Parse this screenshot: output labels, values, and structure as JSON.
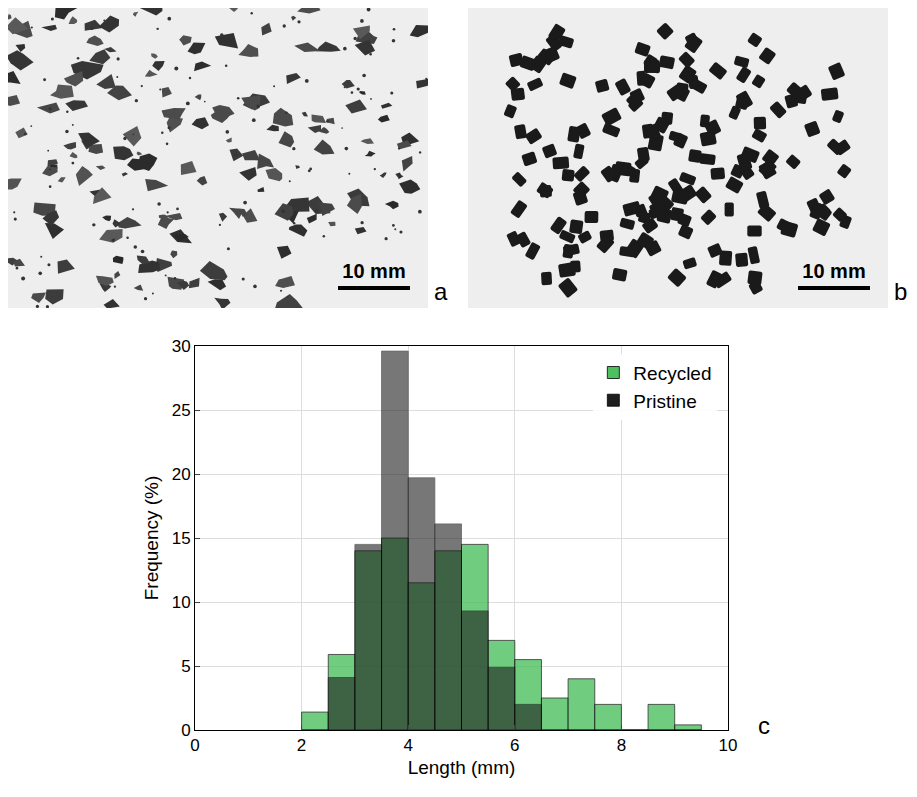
{
  "panels": [
    {
      "letter": "a",
      "scale_bar": "10 mm"
    },
    {
      "letter": "b",
      "scale_bar": "10 mm"
    },
    {
      "letter": "c"
    }
  ],
  "chart_data": {
    "type": "histogram",
    "xlabel": "Length (mm)",
    "ylabel": "Frequency (%)",
    "bins": [
      2,
      2.5,
      3,
      3.5,
      4,
      4.5,
      5,
      5.5,
      6,
      6.5,
      7,
      7.5,
      8,
      8.5,
      9,
      9.5
    ],
    "series": [
      {
        "name": "Recycled",
        "color": "#4dc060",
        "values": [
          1.4,
          5.9,
          14.0,
          15.0,
          11.5,
          14.0,
          14.5,
          7.0,
          5.5,
          2.5,
          4.0,
          2.0,
          0,
          2.0,
          0.4
        ]
      },
      {
        "name": "Pristine",
        "color": "#1e1e1e",
        "values": [
          0,
          4.1,
          14.5,
          29.6,
          19.7,
          16.1,
          9.3,
          4.9,
          2.0,
          0,
          0,
          0,
          0,
          0,
          0
        ]
      }
    ],
    "xlim": [
      0,
      10
    ],
    "xticks": [
      0,
      2,
      4,
      6,
      8,
      10
    ],
    "ylim": [
      0,
      30
    ],
    "yticks": [
      0,
      5,
      10,
      15,
      20,
      25,
      30
    ],
    "grid": true,
    "legend": "top-right"
  }
}
